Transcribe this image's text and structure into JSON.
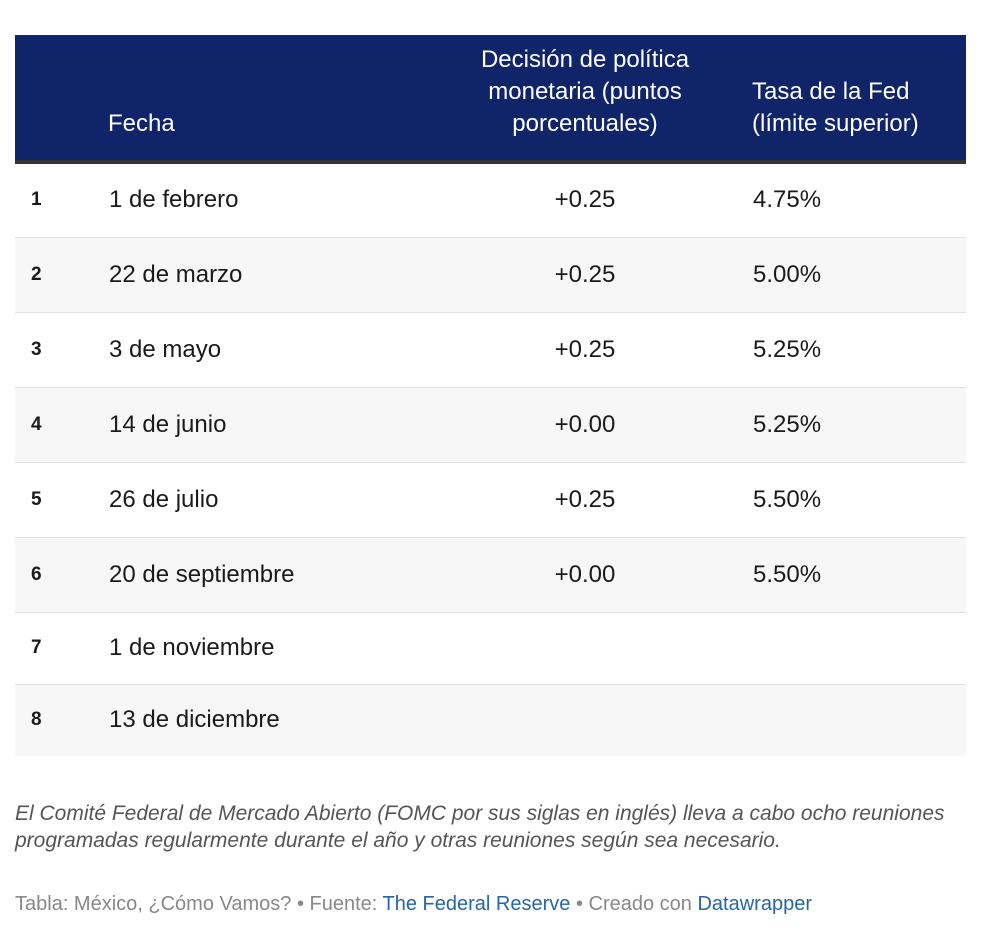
{
  "chart_data": {
    "type": "table",
    "columns": [
      "",
      "Fecha",
      "Decisión de política monetaria (puntos porcentuales)",
      "Tasa de la Fed (límite superior)"
    ],
    "header": {
      "fecha": "Fecha",
      "decision": [
        "Decisión de política",
        "monetaria (puntos",
        "porcentuales)"
      ],
      "tasa": [
        "Tasa de la Fed",
        "(límite superior)"
      ]
    },
    "rows": [
      {
        "n": "1",
        "fecha": "1 de febrero",
        "decision": "+0.25",
        "tasa": "4.75%"
      },
      {
        "n": "2",
        "fecha": "22 de marzo",
        "decision": "+0.25",
        "tasa": "5.00%"
      },
      {
        "n": "3",
        "fecha": "3 de mayo",
        "decision": "+0.25",
        "tasa": "5.25%"
      },
      {
        "n": "4",
        "fecha": "14 de junio",
        "decision": "+0.00",
        "tasa": "5.25%"
      },
      {
        "n": "5",
        "fecha": "26 de julio",
        "decision": "+0.25",
        "tasa": "5.50%"
      },
      {
        "n": "6",
        "fecha": "20 de septiembre",
        "decision": "+0.00",
        "tasa": "5.50%"
      },
      {
        "n": "7",
        "fecha": "1 de noviembre",
        "decision": "",
        "tasa": ""
      },
      {
        "n": "8",
        "fecha": "13 de diciembre",
        "decision": "",
        "tasa": ""
      }
    ]
  },
  "notes": "El Comité Federal de Mercado Abierto (FOMC por sus siglas en inglés) lleva a cabo ocho reuniones programadas regularmente durante el año y otras reuniones según sea necesario.",
  "source": {
    "prefix": "Tabla: México, ¿Cómo Vamos? • Fuente: ",
    "source_link": "The Federal Reserve",
    "middle": " • Creado con ",
    "tool_link": "Datawrapper"
  },
  "colors": {
    "header_bg": "#10246a",
    "link": "#2466a8"
  }
}
